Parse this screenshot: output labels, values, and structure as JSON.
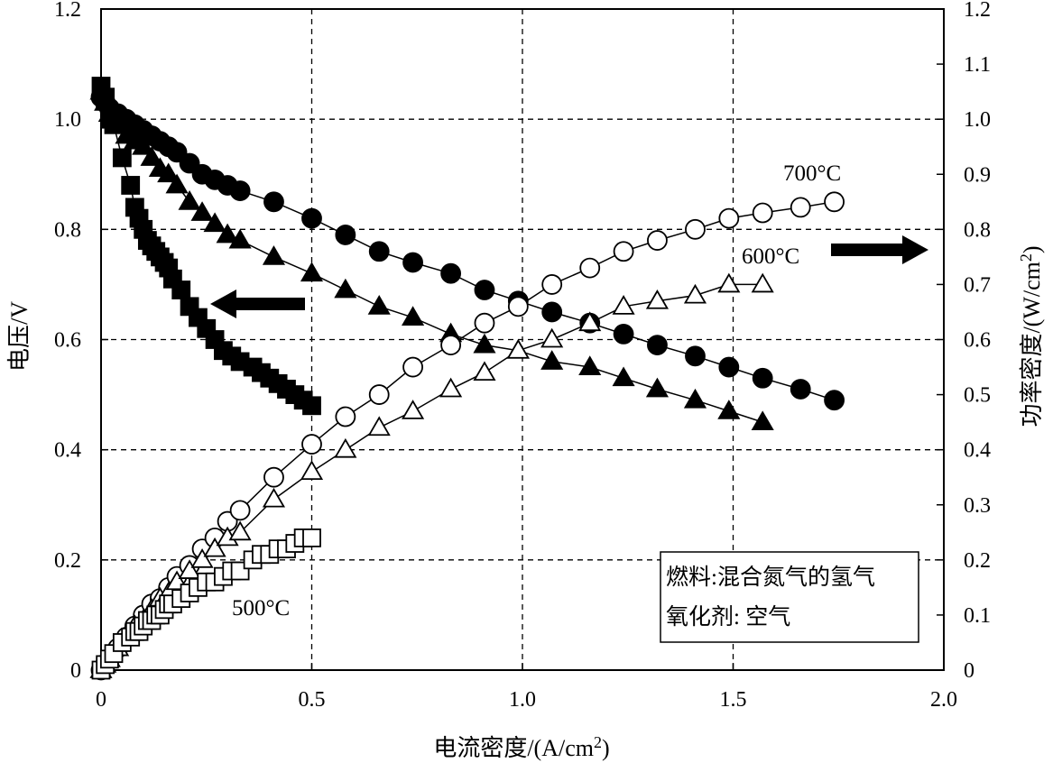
{
  "chart_data": {
    "type": "scatter",
    "xlabel": "电流密度/(A/cm",
    "xlabel_sup": "2",
    "xlabel_tail": ")",
    "ylabel_left": "电压/V",
    "ylabel_right": "功率密度/(W/cm",
    "ylabel_right_sup": "2",
    "ylabel_right_tail": ")",
    "xlim": [
      0,
      2.0
    ],
    "ylim_left": [
      0,
      1.2
    ],
    "ylim_right": [
      0,
      1.2
    ],
    "x_ticks": [
      "0",
      "0.5",
      "1.0",
      "1.5",
      "2.0"
    ],
    "y_left_ticks": [
      "0",
      "0.2",
      "0.4",
      "0.6",
      "0.8",
      "1.0",
      "1.2"
    ],
    "y_right_ticks": [
      "0",
      "0.1",
      "0.2",
      "0.3",
      "0.4",
      "0.5",
      "0.6",
      "0.7",
      "0.8",
      "0.9",
      "1.0",
      "1.1",
      "1.2"
    ],
    "grid": true,
    "legend_lines": [
      "燃料:混合氮气的氢气",
      "氧化剂: 空气"
    ],
    "legend_position": "bottom-right",
    "annotations": {
      "t700": "700°C",
      "t600": "600°C",
      "t500": "500°C"
    },
    "series": [
      {
        "marker": "filled-circle",
        "axis": "left",
        "x": [
          0.0,
          0.01,
          0.02,
          0.04,
          0.06,
          0.08,
          0.1,
          0.12,
          0.14,
          0.16,
          0.18,
          0.21,
          0.24,
          0.27,
          0.3,
          0.33,
          0.41,
          0.5,
          0.58,
          0.66,
          0.74,
          0.83,
          0.91,
          0.99,
          1.07,
          1.16,
          1.24,
          1.32,
          1.41,
          1.49,
          1.57,
          1.66,
          1.74
        ],
        "y": [
          1.04,
          1.03,
          1.02,
          1.01,
          1.0,
          0.99,
          0.98,
          0.97,
          0.96,
          0.95,
          0.94,
          0.92,
          0.9,
          0.89,
          0.88,
          0.87,
          0.85,
          0.82,
          0.79,
          0.76,
          0.74,
          0.72,
          0.69,
          0.67,
          0.65,
          0.63,
          0.61,
          0.59,
          0.57,
          0.55,
          0.53,
          0.51,
          0.49
        ]
      },
      {
        "marker": "filled-triangle",
        "axis": "left",
        "x": [
          0.0,
          0.01,
          0.02,
          0.04,
          0.06,
          0.08,
          0.1,
          0.12,
          0.14,
          0.16,
          0.18,
          0.21,
          0.24,
          0.27,
          0.3,
          0.33,
          0.41,
          0.5,
          0.58,
          0.66,
          0.74,
          0.83,
          0.91,
          0.99,
          1.07,
          1.16,
          1.24,
          1.32,
          1.41,
          1.49,
          1.57
        ],
        "y": [
          1.05,
          1.03,
          1.01,
          0.99,
          0.97,
          0.96,
          0.95,
          0.93,
          0.91,
          0.9,
          0.88,
          0.85,
          0.83,
          0.81,
          0.79,
          0.78,
          0.75,
          0.72,
          0.69,
          0.66,
          0.64,
          0.61,
          0.59,
          0.58,
          0.56,
          0.55,
          0.53,
          0.51,
          0.49,
          0.47,
          0.45
        ]
      },
      {
        "marker": "filled-square",
        "axis": "left",
        "x": [
          0.0,
          0.01,
          0.02,
          0.03,
          0.05,
          0.07,
          0.08,
          0.09,
          0.1,
          0.11,
          0.12,
          0.13,
          0.14,
          0.15,
          0.16,
          0.17,
          0.19,
          0.21,
          0.23,
          0.25,
          0.27,
          0.29,
          0.31,
          0.33,
          0.36,
          0.38,
          0.4,
          0.42,
          0.44,
          0.46,
          0.48,
          0.5
        ],
        "y": [
          1.06,
          1.04,
          1.0,
          0.99,
          0.93,
          0.88,
          0.84,
          0.82,
          0.8,
          0.78,
          0.77,
          0.76,
          0.75,
          0.74,
          0.73,
          0.71,
          0.69,
          0.66,
          0.64,
          0.62,
          0.6,
          0.58,
          0.57,
          0.56,
          0.55,
          0.54,
          0.53,
          0.52,
          0.51,
          0.5,
          0.49,
          0.48
        ]
      },
      {
        "name": "700°C",
        "marker": "open-circle",
        "axis": "right",
        "x": [
          0.0,
          0.01,
          0.02,
          0.04,
          0.06,
          0.08,
          0.1,
          0.12,
          0.14,
          0.16,
          0.18,
          0.21,
          0.24,
          0.27,
          0.3,
          0.33,
          0.41,
          0.5,
          0.58,
          0.66,
          0.74,
          0.83,
          0.91,
          0.99,
          1.07,
          1.16,
          1.24,
          1.32,
          1.41,
          1.49,
          1.57,
          1.66,
          1.74
        ],
        "y": [
          0.0,
          0.01,
          0.02,
          0.04,
          0.06,
          0.08,
          0.1,
          0.12,
          0.13,
          0.15,
          0.17,
          0.19,
          0.22,
          0.24,
          0.27,
          0.29,
          0.35,
          0.41,
          0.46,
          0.5,
          0.55,
          0.59,
          0.63,
          0.66,
          0.7,
          0.73,
          0.76,
          0.78,
          0.8,
          0.82,
          0.83,
          0.84,
          0.85
        ]
      },
      {
        "name": "600°C",
        "marker": "open-triangle",
        "axis": "right",
        "x": [
          0.0,
          0.01,
          0.02,
          0.04,
          0.06,
          0.08,
          0.1,
          0.12,
          0.14,
          0.16,
          0.18,
          0.21,
          0.24,
          0.27,
          0.3,
          0.33,
          0.41,
          0.5,
          0.58,
          0.66,
          0.74,
          0.83,
          0.91,
          0.99,
          1.07,
          1.16,
          1.24,
          1.32,
          1.41,
          1.49,
          1.57
        ],
        "y": [
          0.0,
          0.01,
          0.02,
          0.04,
          0.06,
          0.08,
          0.09,
          0.11,
          0.13,
          0.14,
          0.16,
          0.18,
          0.2,
          0.22,
          0.24,
          0.25,
          0.31,
          0.36,
          0.4,
          0.44,
          0.47,
          0.51,
          0.54,
          0.58,
          0.6,
          0.63,
          0.66,
          0.67,
          0.68,
          0.7,
          0.7
        ]
      },
      {
        "name": "500°C",
        "marker": "open-square",
        "axis": "right",
        "x": [
          0.0,
          0.01,
          0.02,
          0.03,
          0.05,
          0.07,
          0.08,
          0.09,
          0.1,
          0.11,
          0.12,
          0.13,
          0.14,
          0.15,
          0.16,
          0.17,
          0.19,
          0.21,
          0.23,
          0.25,
          0.27,
          0.29,
          0.31,
          0.33,
          0.36,
          0.38,
          0.4,
          0.42,
          0.44,
          0.46,
          0.48,
          0.5
        ],
        "y": [
          0.0,
          0.01,
          0.02,
          0.03,
          0.05,
          0.06,
          0.07,
          0.07,
          0.08,
          0.09,
          0.09,
          0.1,
          0.1,
          0.11,
          0.12,
          0.12,
          0.13,
          0.14,
          0.15,
          0.16,
          0.16,
          0.17,
          0.18,
          0.18,
          0.2,
          0.21,
          0.21,
          0.22,
          0.22,
          0.23,
          0.24,
          0.24
        ]
      }
    ]
  }
}
